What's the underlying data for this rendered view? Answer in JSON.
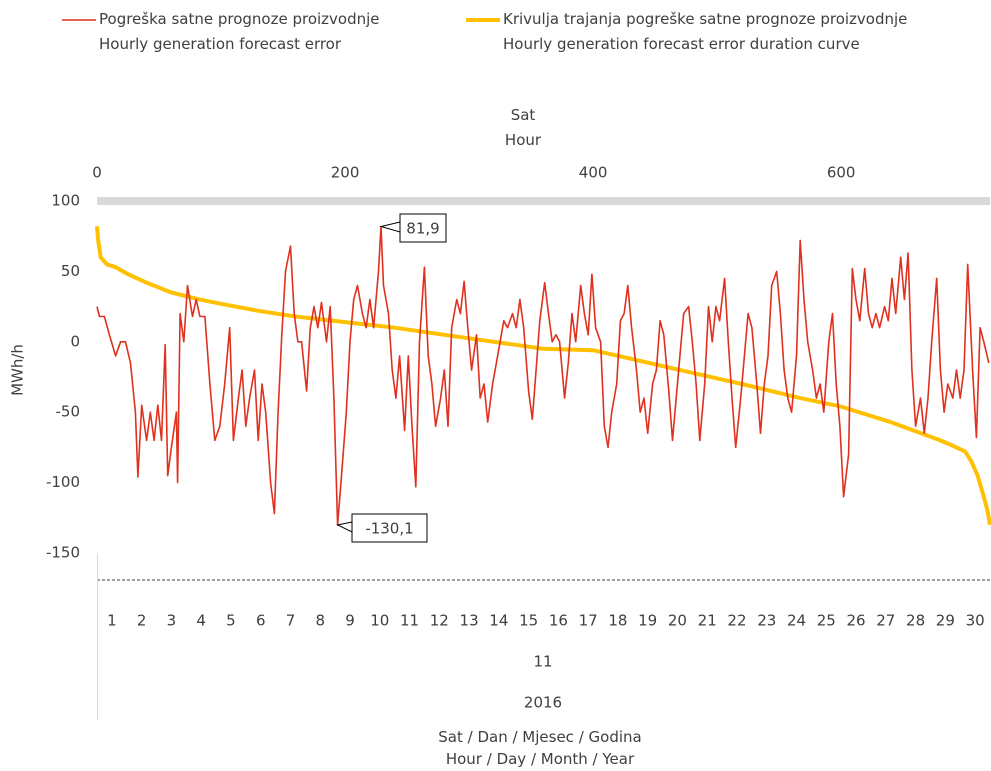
{
  "chart_data": {
    "type": "line",
    "x2_title": "Sat\nHour",
    "y_title": "MWh/h",
    "x_title": "Sat / Dan / Mjesec / Godina\nHour / Day / Month / Year",
    "xlim": [
      0,
      720
    ],
    "xticks": [
      0,
      200,
      400,
      600
    ],
    "ylim": [
      -150,
      100
    ],
    "yticks": [
      100,
      50,
      0,
      -50,
      -100,
      -150
    ],
    "legend": "top",
    "days": [
      1,
      2,
      3,
      4,
      5,
      6,
      7,
      8,
      9,
      10,
      11,
      12,
      13,
      14,
      15,
      16,
      17,
      18,
      19,
      20,
      21,
      22,
      23,
      24,
      25,
      26,
      27,
      28,
      29,
      30
    ],
    "month": "11",
    "year": "2016",
    "series": [
      {
        "name": "Pogreška satne prognoze proizvodnje\nHourly generation forecast error",
        "color": "#e0301e",
        "width": 1.6,
        "x": [
          0,
          2,
          6,
          10,
          15,
          19,
          23,
          27,
          31,
          33,
          36,
          40,
          43,
          46,
          49,
          52,
          55,
          57,
          60,
          64,
          65,
          67,
          70,
          73,
          77,
          80,
          83,
          87,
          91,
          95,
          99,
          103,
          107,
          110,
          114,
          117,
          120,
          123,
          127,
          130,
          133,
          136,
          140,
          143,
          146,
          149,
          152,
          156,
          159,
          162,
          165,
          169,
          172,
          175,
          178,
          181,
          185,
          188,
          191,
          194,
          198,
          201,
          204,
          207,
          210,
          214,
          217,
          220,
          223,
          227,
          229,
          231,
          235,
          238,
          241,
          244,
          248,
          251,
          254,
          257,
          260,
          264,
          267,
          270,
          273,
          277,
          280,
          283,
          286,
          290,
          293,
          296,
          299,
          302,
          306,
          309,
          312,
          315,
          319,
          322,
          325,
          328,
          331,
          335,
          338,
          341,
          344,
          348,
          351,
          354,
          357,
          361,
          364,
          367,
          370,
          373,
          377,
          380,
          383,
          386,
          390,
          393,
          396,
          399,
          402,
          406,
          409,
          412,
          415,
          419,
          422,
          425,
          428,
          431,
          435,
          438,
          441,
          444,
          448,
          451,
          454,
          457,
          461,
          464,
          467,
          470,
          473,
          477,
          480,
          483,
          486,
          490,
          493,
          496,
          499,
          502,
          506,
          509,
          512,
          515,
          519,
          522,
          525,
          528,
          532,
          535,
          538,
          541,
          544,
          548,
          551,
          554,
          557,
          560,
          564,
          567,
          570,
          573,
          577,
          580,
          583,
          586,
          590,
          593,
          596,
          599,
          602,
          606,
          609,
          612,
          615,
          619,
          622,
          625,
          628,
          631,
          635,
          638,
          641,
          644,
          648,
          651,
          654,
          657,
          660,
          664,
          667,
          670,
          673,
          677,
          680,
          683,
          686,
          690,
          693,
          696,
          699,
          702,
          706,
          709,
          712,
          715,
          719
        ],
        "values": [
          25,
          18,
          18,
          5,
          -10,
          0,
          0,
          -15,
          -50,
          -96,
          -45,
          -70,
          -50,
          -70,
          -45,
          -70,
          -2,
          -95,
          -75,
          -50,
          -100,
          20,
          0,
          40,
          18,
          30,
          18,
          18,
          -30,
          -70,
          -60,
          -30,
          10,
          -70,
          -40,
          -20,
          -60,
          -40,
          -20,
          -70,
          -30,
          -50,
          -100,
          -122,
          -50,
          5,
          50,
          68,
          20,
          0,
          0,
          -35,
          10,
          25,
          10,
          28,
          0,
          25,
          -40,
          -130.1,
          -85,
          -50,
          0,
          30,
          40,
          20,
          10,
          30,
          10,
          50,
          81.9,
          40,
          20,
          -20,
          -40,
          -10,
          -63,
          -10,
          -60,
          -103,
          0,
          53,
          -10,
          -30,
          -60,
          -40,
          -20,
          -60,
          10,
          30,
          20,
          43,
          10,
          -20,
          5,
          -40,
          -30,
          -57,
          -30,
          -15,
          0,
          15,
          10,
          20,
          10,
          30,
          10,
          -35,
          -55,
          -20,
          15,
          42,
          20,
          0,
          5,
          0,
          -40,
          -15,
          20,
          0,
          40,
          20,
          5,
          48,
          10,
          0,
          -60,
          -75,
          -50,
          -30,
          15,
          20,
          40,
          10,
          -20,
          -50,
          -40,
          -65,
          -30,
          -20,
          15,
          5,
          -35,
          -70,
          -40,
          -10,
          20,
          25,
          0,
          -30,
          -70,
          -30,
          25,
          0,
          25,
          15,
          45,
          0,
          -40,
          -75,
          -40,
          -10,
          20,
          10,
          -30,
          -65,
          -30,
          -10,
          40,
          50,
          20,
          -20,
          -40,
          -50,
          -10,
          72,
          30,
          0,
          -20,
          -40,
          -30,
          -50,
          0,
          20,
          -30,
          -60,
          -110,
          -80,
          52,
          30,
          15,
          52,
          20,
          10,
          20,
          10,
          25,
          15,
          45,
          20,
          60,
          30,
          63,
          -20,
          -60,
          -40,
          -65,
          -40,
          0,
          45,
          -20,
          -50,
          -30,
          -40,
          -20,
          -40,
          -20,
          55,
          -20,
          -68,
          10,
          0,
          -15
        ]
      },
      {
        "name": "Krivulja trajanja pogreške satne prognoze proizvodnje\nHourly generation forecast error duration curve",
        "color": "#ffc000",
        "width": 4,
        "x": [
          0,
          1,
          3,
          8,
          15,
          25,
          40,
          60,
          83,
          100,
          130,
          160,
          200,
          240,
          280,
          320,
          360,
          400,
          440,
          480,
          520,
          567,
          600,
          640,
          680,
          688,
          700,
          705,
          710,
          715,
          718,
          720
        ],
        "values": [
          82,
          72,
          60,
          55,
          53,
          48,
          42,
          35,
          30,
          27,
          22,
          18,
          14,
          10,
          5,
          0,
          -5,
          -6,
          -14,
          -22,
          -30,
          -40,
          -46,
          -57,
          -70,
          -73,
          -78,
          -85,
          -95,
          -110,
          -120,
          -130
        ]
      }
    ],
    "annotations": [
      {
        "x": 229,
        "value": 81.9,
        "label": "81,9"
      },
      {
        "x": 194,
        "value": -130.1,
        "label": "-130,1"
      }
    ]
  }
}
